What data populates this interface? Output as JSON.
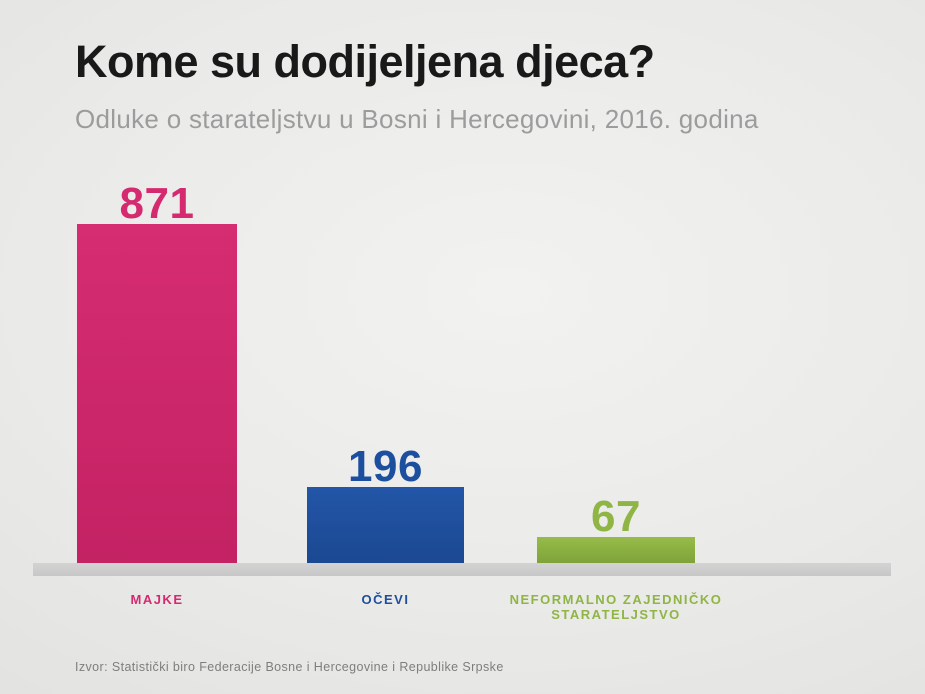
{
  "title": "Kome su dodijeljena djeca?",
  "subtitle": "Odluke o starateljstvu u Bosni i Hercegovini, 2016. godina",
  "source": "Izvor: Statistički biro Federacije Bosne i Hercegovine i Republike Srpske",
  "chart_data": {
    "type": "bar",
    "title": "Kome su dodijeljena djeca?",
    "subtitle": "Odluke o starateljstvu u Bosni i Hercegovini, 2016. godina",
    "categories": [
      "MAJKE",
      "OČEVI",
      "NEFORMALNO ZAJEDNIČKO STARATELJSTVO"
    ],
    "values": [
      871,
      196,
      67
    ],
    "ylim": [
      0,
      871
    ],
    "grid": false,
    "legend": false,
    "value_labels_shown": true,
    "source": "Izvor: Statistički biro Federacije Bosne i Hercegovine i Republike Srpske",
    "bar_colors": [
      {
        "top": "#d62c72",
        "bottom": "#c32263",
        "label": "#d52a70"
      },
      {
        "top": "#2356a8",
        "bottom": "#1b4891",
        "label": "#1d4f9f"
      },
      {
        "top": "#97bc4a",
        "bottom": "#7fa339",
        "label": "#8fb545"
      }
    ],
    "colors": {
      "background_light": "#f2f2f0",
      "background_dark": "#d6d6d4",
      "baseline": "#cbcbcb",
      "title": "#191919",
      "subtitle": "#9c9c9c",
      "source_text": "#7e7e7e"
    }
  }
}
